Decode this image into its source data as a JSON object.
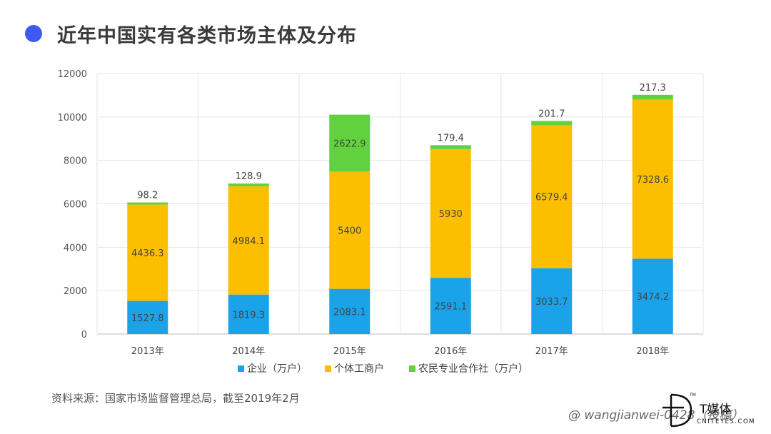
{
  "header": {
    "title": "近年中国实有各类市场主体及分布"
  },
  "source": {
    "text": "资料来源：国家市场监督管理总局，截至2019年2月"
  },
  "watermark": {
    "user": "@ wangjianwei-0428",
    "logo_text": "T媒体",
    "logo_sub": "CNITEYES.COM",
    "logo_tm": "TM",
    "suffix": "（投稿）"
  },
  "colors": {
    "title_dot": "#3d5af1"
  },
  "chart_data": {
    "type": "bar",
    "stacked": true,
    "categories": [
      "2013年",
      "2014年",
      "2015年",
      "2016年",
      "2017年",
      "2018年"
    ],
    "series": [
      {
        "name": "企业（万户）",
        "color": "#1aa3e8",
        "values": [
          1527.8,
          1819.3,
          2083.1,
          2591.1,
          3033.7,
          3474.2
        ]
      },
      {
        "name": "个体工商户",
        "color": "#fbbf00",
        "values": [
          4436.3,
          4984.1,
          5400,
          5930,
          6579.4,
          7328.6
        ]
      },
      {
        "name": "农民专业合作社（万户）",
        "color": "#62d13f",
        "values": [
          98.2,
          128.9,
          2622.9,
          179.4,
          201.7,
          217.3
        ]
      }
    ],
    "data_labels": [
      [
        "1527.8",
        "1819.3",
        "2083.1",
        "2591.1",
        "3033.7",
        "3474.2"
      ],
      [
        "4436.3",
        "4984.1",
        "5400",
        "5930",
        "6579.4",
        "7328.6"
      ],
      [
        "98.2",
        "128.9",
        "2622.9",
        "179.4",
        "201.7",
        "217.3"
      ]
    ],
    "ylim": [
      0,
      12000
    ],
    "yticks": [
      "0",
      "2000",
      "4000",
      "6000",
      "8000",
      "10000",
      "12000"
    ],
    "grid": true,
    "legend": "bottom"
  }
}
